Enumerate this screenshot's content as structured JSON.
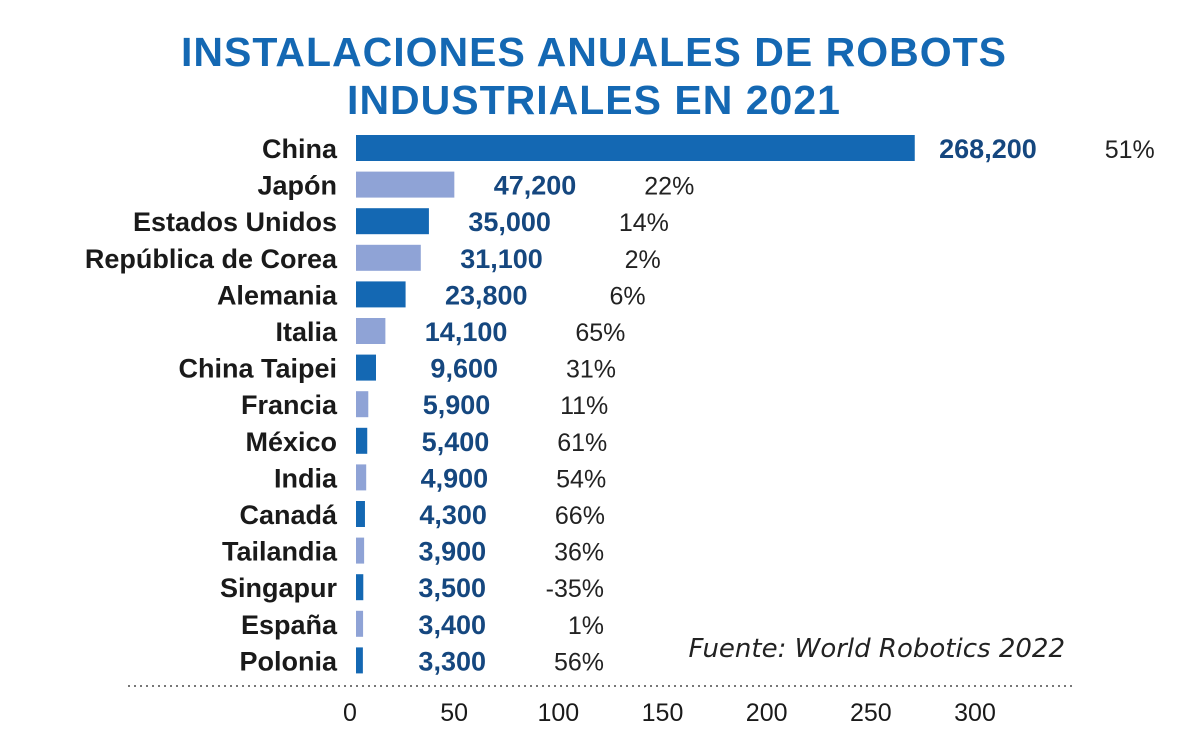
{
  "title_lines": [
    "INSTALACIONES ANUALES DE ROBOTS",
    "INDUSTRIALES EN 2021"
  ],
  "source": "Fuente: World Robotics 2022",
  "colors": {
    "accent": "#1468b3",
    "bar_dark": "#1468b3",
    "bar_light": "#8fa3d6",
    "value_label": "#15477f"
  },
  "chart_data": {
    "type": "bar",
    "orientation": "horizontal",
    "title": "INSTALACIONES ANUALES DE ROBOTS INDUSTRIALES EN 2021",
    "categories": [
      "China",
      "Japón",
      "Estados Unidos",
      "República de Corea",
      "Alemania",
      "Italia",
      "China Taipei",
      "Francia",
      "México",
      "India",
      "Canadá",
      "Tailandia",
      "Singapur",
      "España",
      "Polonia"
    ],
    "values": [
      268200,
      47200,
      35000,
      31100,
      23800,
      14100,
      9600,
      5900,
      5400,
      4900,
      4300,
      3900,
      3500,
      3400,
      3300
    ],
    "value_labels": [
      "268,200",
      "47,200",
      "35,000",
      "31,100",
      "23,800",
      "14,100",
      "9,600",
      "5,900",
      "5,400",
      "4,900",
      "4,300",
      "3,900",
      "3,500",
      "3,400",
      "3,300"
    ],
    "percent_labels": [
      "51%",
      "22%",
      "14%",
      "2%",
      "6%",
      "65%",
      "31%",
      "11%",
      "61%",
      "54%",
      "66%",
      "36%",
      "-35%",
      "1%",
      "56%"
    ],
    "x_ticks": [
      0,
      50,
      100,
      150,
      200,
      250,
      300
    ],
    "x_tick_labels": [
      "0",
      "50",
      "100",
      "150",
      "200",
      "250",
      "300"
    ],
    "xlim": [
      0,
      300
    ],
    "x_scale_note": "",
    "grid": false,
    "legend": "none"
  }
}
